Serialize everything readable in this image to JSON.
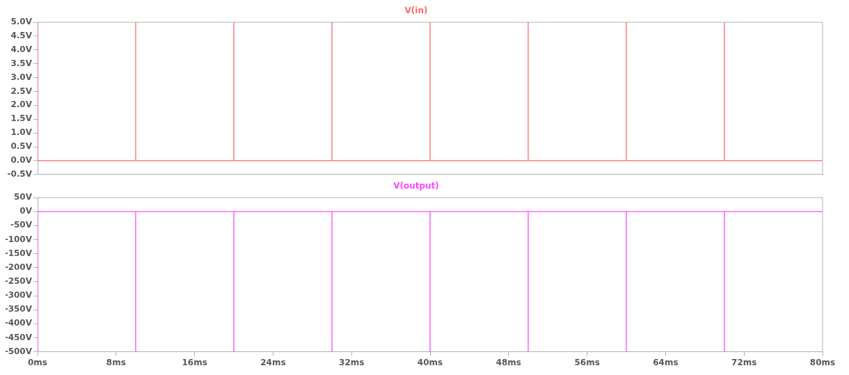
{
  "chart_data": [
    {
      "type": "line",
      "legend": "top",
      "grid": false,
      "marker": "none",
      "tick_labels": "y",
      "xlim": [
        0,
        80
      ],
      "ylim": [
        -0.5,
        5.0
      ],
      "yticks": [
        {
          "value": -0.5,
          "label": "-0.5V"
        },
        {
          "value": 0,
          "label": "0.0V"
        },
        {
          "value": 0.5,
          "label": "0.5V"
        },
        {
          "value": 1,
          "label": "1.0V"
        },
        {
          "value": 1.5,
          "label": "1.5V"
        },
        {
          "value": 2,
          "label": "2.0V"
        },
        {
          "value": 2.5,
          "label": "2.5V"
        },
        {
          "value": 3,
          "label": "3.0V"
        },
        {
          "value": 3.5,
          "label": "3.5V"
        },
        {
          "value": 4,
          "label": "4.0V"
        },
        {
          "value": 4.5,
          "label": "4.5V"
        },
        {
          "value": 5,
          "label": "5.0V"
        }
      ],
      "series": [
        {
          "name": "V(in)",
          "color": "#ff6666",
          "x": [
            0,
            0,
            10,
            10,
            10,
            20,
            20,
            20,
            30,
            30,
            30,
            40,
            40,
            40,
            50,
            50,
            50,
            60,
            60,
            60,
            70,
            70,
            70,
            80
          ],
          "values": [
            5,
            0,
            0,
            5,
            0,
            0,
            5,
            0,
            0,
            5,
            0,
            0,
            5,
            0,
            0,
            5,
            0,
            0,
            5,
            0,
            0,
            5,
            0,
            0
          ]
        }
      ]
    },
    {
      "type": "line",
      "legend": "top",
      "grid": false,
      "marker": "none",
      "xlim": [
        0,
        80
      ],
      "xticks": [
        {
          "value": 0,
          "label": "0ms"
        },
        {
          "value": 8,
          "label": "8ms"
        },
        {
          "value": 16,
          "label": "16ms"
        },
        {
          "value": 24,
          "label": "24ms"
        },
        {
          "value": 32,
          "label": "32ms"
        },
        {
          "value": 40,
          "label": "40ms"
        },
        {
          "value": 48,
          "label": "48ms"
        },
        {
          "value": 56,
          "label": "56ms"
        },
        {
          "value": 64,
          "label": "64ms"
        },
        {
          "value": 72,
          "label": "72ms"
        },
        {
          "value": 80,
          "label": "80ms"
        }
      ],
      "ylim": [
        -500,
        50
      ],
      "yticks": [
        {
          "value": -500,
          "label": "-500V"
        },
        {
          "value": -450,
          "label": "-450V"
        },
        {
          "value": -400,
          "label": "-400V"
        },
        {
          "value": -350,
          "label": "-350V"
        },
        {
          "value": -300,
          "label": "-300V"
        },
        {
          "value": -250,
          "label": "-250V"
        },
        {
          "value": -200,
          "label": "-200V"
        },
        {
          "value": -150,
          "label": "-150V"
        },
        {
          "value": -100,
          "label": "-100V"
        },
        {
          "value": -50,
          "label": "-50V"
        },
        {
          "value": 0,
          "label": "0V"
        },
        {
          "value": 50,
          "label": "50V"
        }
      ],
      "series": [
        {
          "name": "V(output)",
          "color": "#ff44ff",
          "x": [
            0,
            0,
            10,
            10,
            10,
            20,
            20,
            20,
            30,
            30,
            30,
            40,
            40,
            40,
            50,
            50,
            50,
            60,
            60,
            60,
            70,
            70,
            70,
            80
          ],
          "values": [
            -500,
            0,
            0,
            -500,
            0,
            0,
            -500,
            0,
            0,
            -500,
            0,
            0,
            -500,
            0,
            0,
            -500,
            0,
            0,
            -500,
            0,
            0,
            -500,
            0,
            0
          ]
        }
      ]
    }
  ]
}
